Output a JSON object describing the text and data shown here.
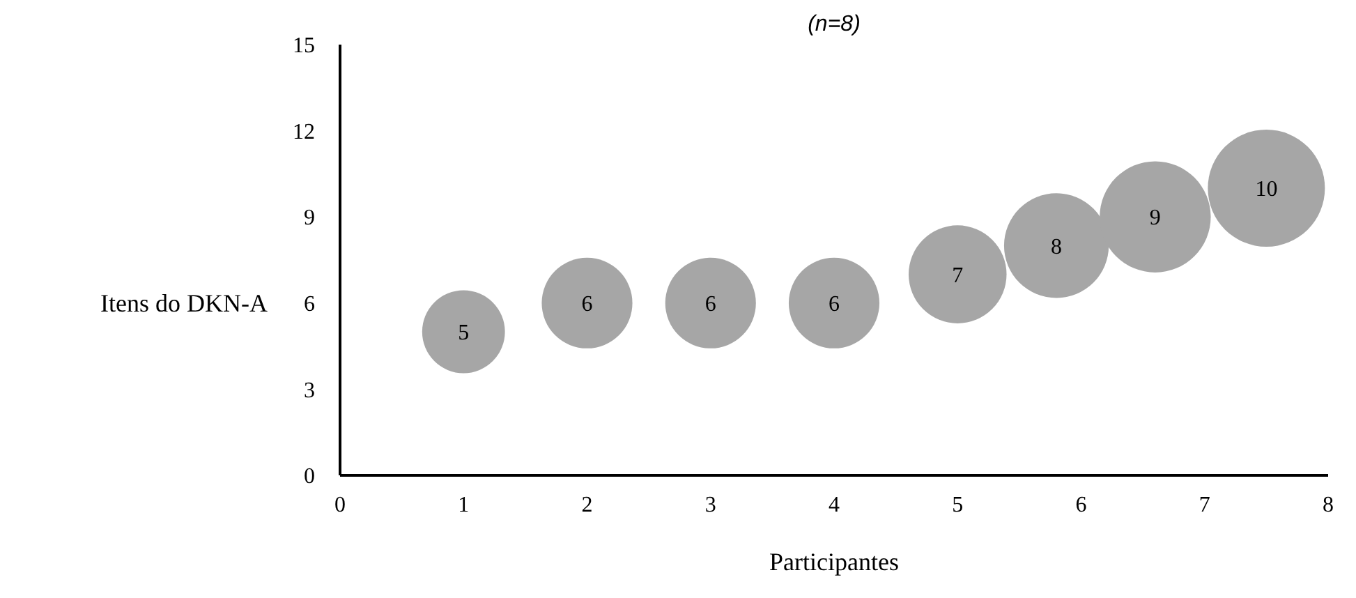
{
  "chart_data": {
    "type": "bubble",
    "title": "(n=8)",
    "xlabel": "Participantes",
    "ylabel": "Itens do DKN-A",
    "x": [
      1,
      2,
      3,
      4,
      5,
      5.8,
      6.6,
      7.5
    ],
    "series": [
      {
        "color": "#a6a6a6",
        "values": [
          5,
          6,
          6,
          6,
          7,
          8,
          9,
          10
        ],
        "sizes": [
          0.5,
          0.6,
          0.6,
          0.6,
          0.7,
          0.8,
          0.9,
          1
        ]
      }
    ],
    "data_labels": true,
    "xlim": [
      0,
      8
    ],
    "xticks": [
      0,
      1,
      2,
      3,
      4,
      5,
      6,
      7,
      8
    ],
    "ylim": [
      0,
      15
    ],
    "yticks": [
      0,
      3,
      6,
      9,
      12,
      15
    ],
    "grid": false
  }
}
